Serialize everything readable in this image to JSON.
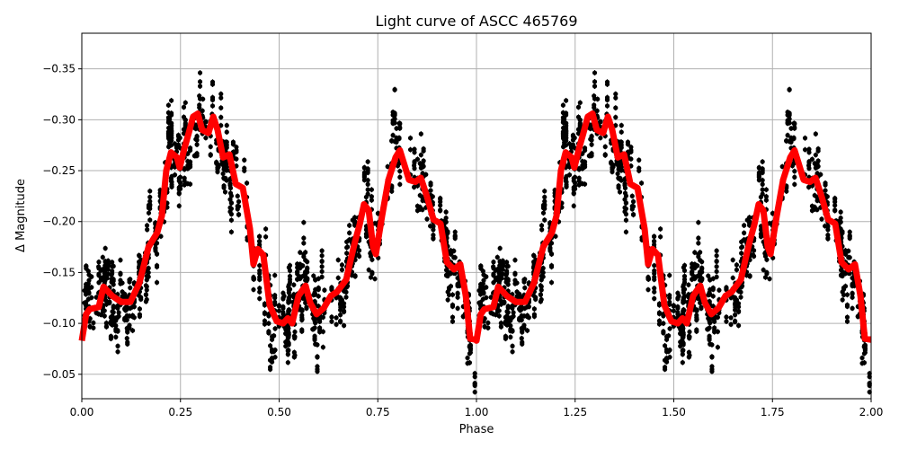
{
  "chart_data": {
    "type": "scatter",
    "title": "Light curve of ASCC 465769",
    "xlabel": "Phase",
    "ylabel": "Δ Magnitude",
    "xlim": [
      0,
      2
    ],
    "ylim": [
      -0.026,
      -0.385
    ],
    "y_inverted": true,
    "grid": true,
    "xticks": [
      "0.00",
      "0.25",
      "0.50",
      "0.75",
      "1.00",
      "1.25",
      "1.50",
      "1.75",
      "2.00"
    ],
    "xtick_values": [
      0,
      0.25,
      0.5,
      0.75,
      1,
      1.25,
      1.5,
      1.75,
      2
    ],
    "yticks": [
      "−0.35",
      "−0.30",
      "−0.25",
      "−0.20",
      "−0.15",
      "−0.10",
      "−0.05"
    ],
    "ytick_values": [
      -0.35,
      -0.3,
      -0.25,
      -0.2,
      -0.15,
      -0.1,
      -0.05
    ],
    "colors": {
      "points": "#000000",
      "model": "#ff0000",
      "grid": "#b0b0b0"
    },
    "series": [
      {
        "kind": "scatter-with-errorbars",
        "color": "#000000",
        "period_repeat": true
      },
      {
        "kind": "line",
        "color": "#ff0000",
        "period_repeat": true,
        "phase": [
          0,
          0.011,
          0.02,
          0.043,
          0.055,
          0.077,
          0.1,
          0.123,
          0.146,
          0.169,
          0.191,
          0.203,
          0.214,
          0.226,
          0.241,
          0.248,
          0.26,
          0.271,
          0.282,
          0.294,
          0.305,
          0.321,
          0.333,
          0.344,
          0.358,
          0.374,
          0.39,
          0.408,
          0.426,
          0.435,
          0.446,
          0.46,
          0.476,
          0.494,
          0.51,
          0.522,
          0.533,
          0.549,
          0.567,
          0.579,
          0.595,
          0.613,
          0.631,
          0.647,
          0.67,
          0.681,
          0.692,
          0.704,
          0.715,
          0.727,
          0.738,
          0.745,
          0.761,
          0.777,
          0.795,
          0.806,
          0.818,
          0.829,
          0.845,
          0.859,
          0.875,
          0.891,
          0.909,
          0.925,
          0.943,
          0.959,
          0.973,
          0.984,
          1.0
        ],
        "magnitude": [
          -0.083,
          -0.109,
          -0.114,
          -0.116,
          -0.136,
          -0.127,
          -0.121,
          -0.121,
          -0.14,
          -0.175,
          -0.189,
          -0.206,
          -0.25,
          -0.268,
          -0.263,
          -0.253,
          -0.272,
          -0.287,
          -0.303,
          -0.306,
          -0.29,
          -0.287,
          -0.303,
          -0.29,
          -0.263,
          -0.266,
          -0.237,
          -0.233,
          -0.193,
          -0.158,
          -0.173,
          -0.167,
          -0.118,
          -0.102,
          -0.1,
          -0.105,
          -0.1,
          -0.127,
          -0.137,
          -0.12,
          -0.109,
          -0.115,
          -0.127,
          -0.131,
          -0.143,
          -0.162,
          -0.18,
          -0.197,
          -0.217,
          -0.211,
          -0.175,
          -0.168,
          -0.206,
          -0.241,
          -0.263,
          -0.27,
          -0.255,
          -0.241,
          -0.239,
          -0.243,
          -0.224,
          -0.202,
          -0.198,
          -0.16,
          -0.153,
          -0.158,
          -0.127,
          -0.085,
          -0.084
        ]
      }
    ]
  }
}
